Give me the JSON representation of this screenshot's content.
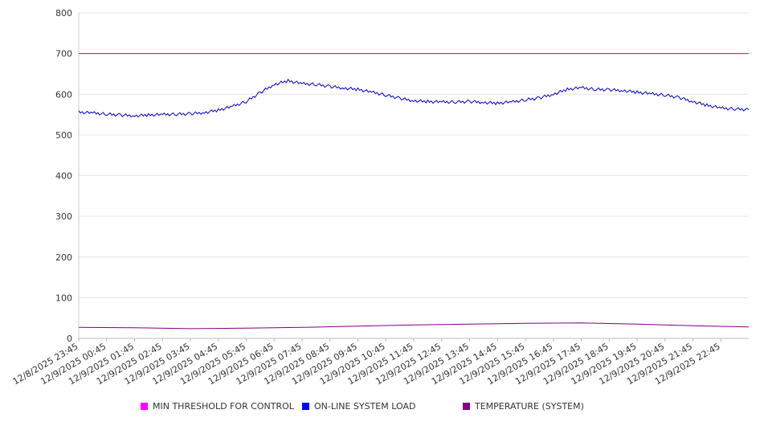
{
  "chart_data": {
    "type": "line",
    "ylim": [
      0,
      800
    ],
    "y_ticks": [
      0,
      100,
      200,
      300,
      400,
      500,
      600,
      700,
      800
    ],
    "grid": "horizontal",
    "legend_position": "bottom",
    "x_start": "12/8/2025 23:45",
    "x_end": "12/9/2025 23:45",
    "x_tick_labels": [
      "12/8/2025 23:45",
      "12/9/2025 00:45",
      "12/9/2025 01:45",
      "12/9/2025 02:45",
      "12/9/2025 03:45",
      "12/9/2025 04:45",
      "12/9/2025 05:45",
      "12/9/2025 06:45",
      "12/9/2025 07:45",
      "12/9/2025 08:45",
      "12/9/2025 09:45",
      "12/9/2025 10:45",
      "12/9/2025 11:45",
      "12/9/2025 12:45",
      "12/9/2025 13:45",
      "12/9/2025 14:45",
      "12/9/2025 15:45",
      "12/9/2025 16:45",
      "12/9/2025 17:45",
      "12/9/2025 18:45",
      "12/9/2025 19:45",
      "12/9/2025 20:45",
      "12/9/2025 21:45",
      "12/9/2025 22:45"
    ],
    "series": [
      {
        "name": "MIN THRESHOLD FOR CONTROL",
        "color": "#cc0099",
        "legend_color": "#ff00ff",
        "points": [
          [
            "12/8/2025 23:45",
            700
          ],
          [
            "12/9/2025 23:45",
            700
          ]
        ]
      },
      {
        "name": "ON-LINE SYSTEM LOAD",
        "color": "#0000cc",
        "legend_color": "#0000ff",
        "points": [
          [
            "12/8/2025 23:45",
            556
          ],
          [
            "12/9/2025 00:15",
            554
          ],
          [
            "12/9/2025 00:45",
            551
          ],
          [
            "12/9/2025 01:15",
            549
          ],
          [
            "12/9/2025 01:45",
            547
          ],
          [
            "12/9/2025 02:15",
            549
          ],
          [
            "12/9/2025 02:45",
            550
          ],
          [
            "12/9/2025 03:15",
            551
          ],
          [
            "12/9/2025 03:45",
            552
          ],
          [
            "12/9/2025 04:15",
            555
          ],
          [
            "12/9/2025 04:45",
            561
          ],
          [
            "12/9/2025 05:15",
            570
          ],
          [
            "12/9/2025 05:45",
            582
          ],
          [
            "12/9/2025 06:15",
            604
          ],
          [
            "12/9/2025 06:45",
            624
          ],
          [
            "12/9/2025 07:15",
            633
          ],
          [
            "12/9/2025 07:45",
            626
          ],
          [
            "12/9/2025 08:15",
            624
          ],
          [
            "12/9/2025 08:45",
            619
          ],
          [
            "12/9/2025 09:15",
            615
          ],
          [
            "12/9/2025 09:45",
            612
          ],
          [
            "12/9/2025 10:15",
            605
          ],
          [
            "12/9/2025 10:45",
            598
          ],
          [
            "12/9/2025 11:15",
            590
          ],
          [
            "12/9/2025 11:45",
            584
          ],
          [
            "12/9/2025 12:15",
            582
          ],
          [
            "12/9/2025 12:45",
            581
          ],
          [
            "12/9/2025 13:15",
            581
          ],
          [
            "12/9/2025 13:45",
            582
          ],
          [
            "12/9/2025 14:15",
            580
          ],
          [
            "12/9/2025 14:45",
            578
          ],
          [
            "12/9/2025 15:15",
            581
          ],
          [
            "12/9/2025 15:45",
            586
          ],
          [
            "12/9/2025 16:15",
            591
          ],
          [
            "12/9/2025 16:45",
            600
          ],
          [
            "12/9/2025 17:15",
            612
          ],
          [
            "12/9/2025 17:45",
            616
          ],
          [
            "12/9/2025 18:15",
            612
          ],
          [
            "12/9/2025 18:45",
            611
          ],
          [
            "12/9/2025 19:15",
            609
          ],
          [
            "12/9/2025 19:45",
            605
          ],
          [
            "12/9/2025 20:15",
            601
          ],
          [
            "12/9/2025 20:45",
            598
          ],
          [
            "12/9/2025 21:15",
            592
          ],
          [
            "12/9/2025 21:45",
            582
          ],
          [
            "12/9/2025 22:15",
            573
          ],
          [
            "12/9/2025 22:45",
            566
          ],
          [
            "12/9/2025 23:15",
            564
          ],
          [
            "12/9/2025 23:45",
            562
          ]
        ]
      },
      {
        "name": "TEMPERATURE (SYSTEM)",
        "color": "#800080",
        "legend_color": "#800080",
        "points": [
          [
            "12/8/2025 23:45",
            27
          ],
          [
            "12/9/2025 01:45",
            26
          ],
          [
            "12/9/2025 03:45",
            24
          ],
          [
            "12/9/2025 05:45",
            25
          ],
          [
            "12/9/2025 07:45",
            27
          ],
          [
            "12/9/2025 09:45",
            30
          ],
          [
            "12/9/2025 11:45",
            33
          ],
          [
            "12/9/2025 13:45",
            35
          ],
          [
            "12/9/2025 15:45",
            37
          ],
          [
            "12/9/2025 17:45",
            38
          ],
          [
            "12/9/2025 19:45",
            35
          ],
          [
            "12/9/2025 21:45",
            31
          ],
          [
            "12/9/2025 23:45",
            28
          ]
        ]
      }
    ]
  }
}
